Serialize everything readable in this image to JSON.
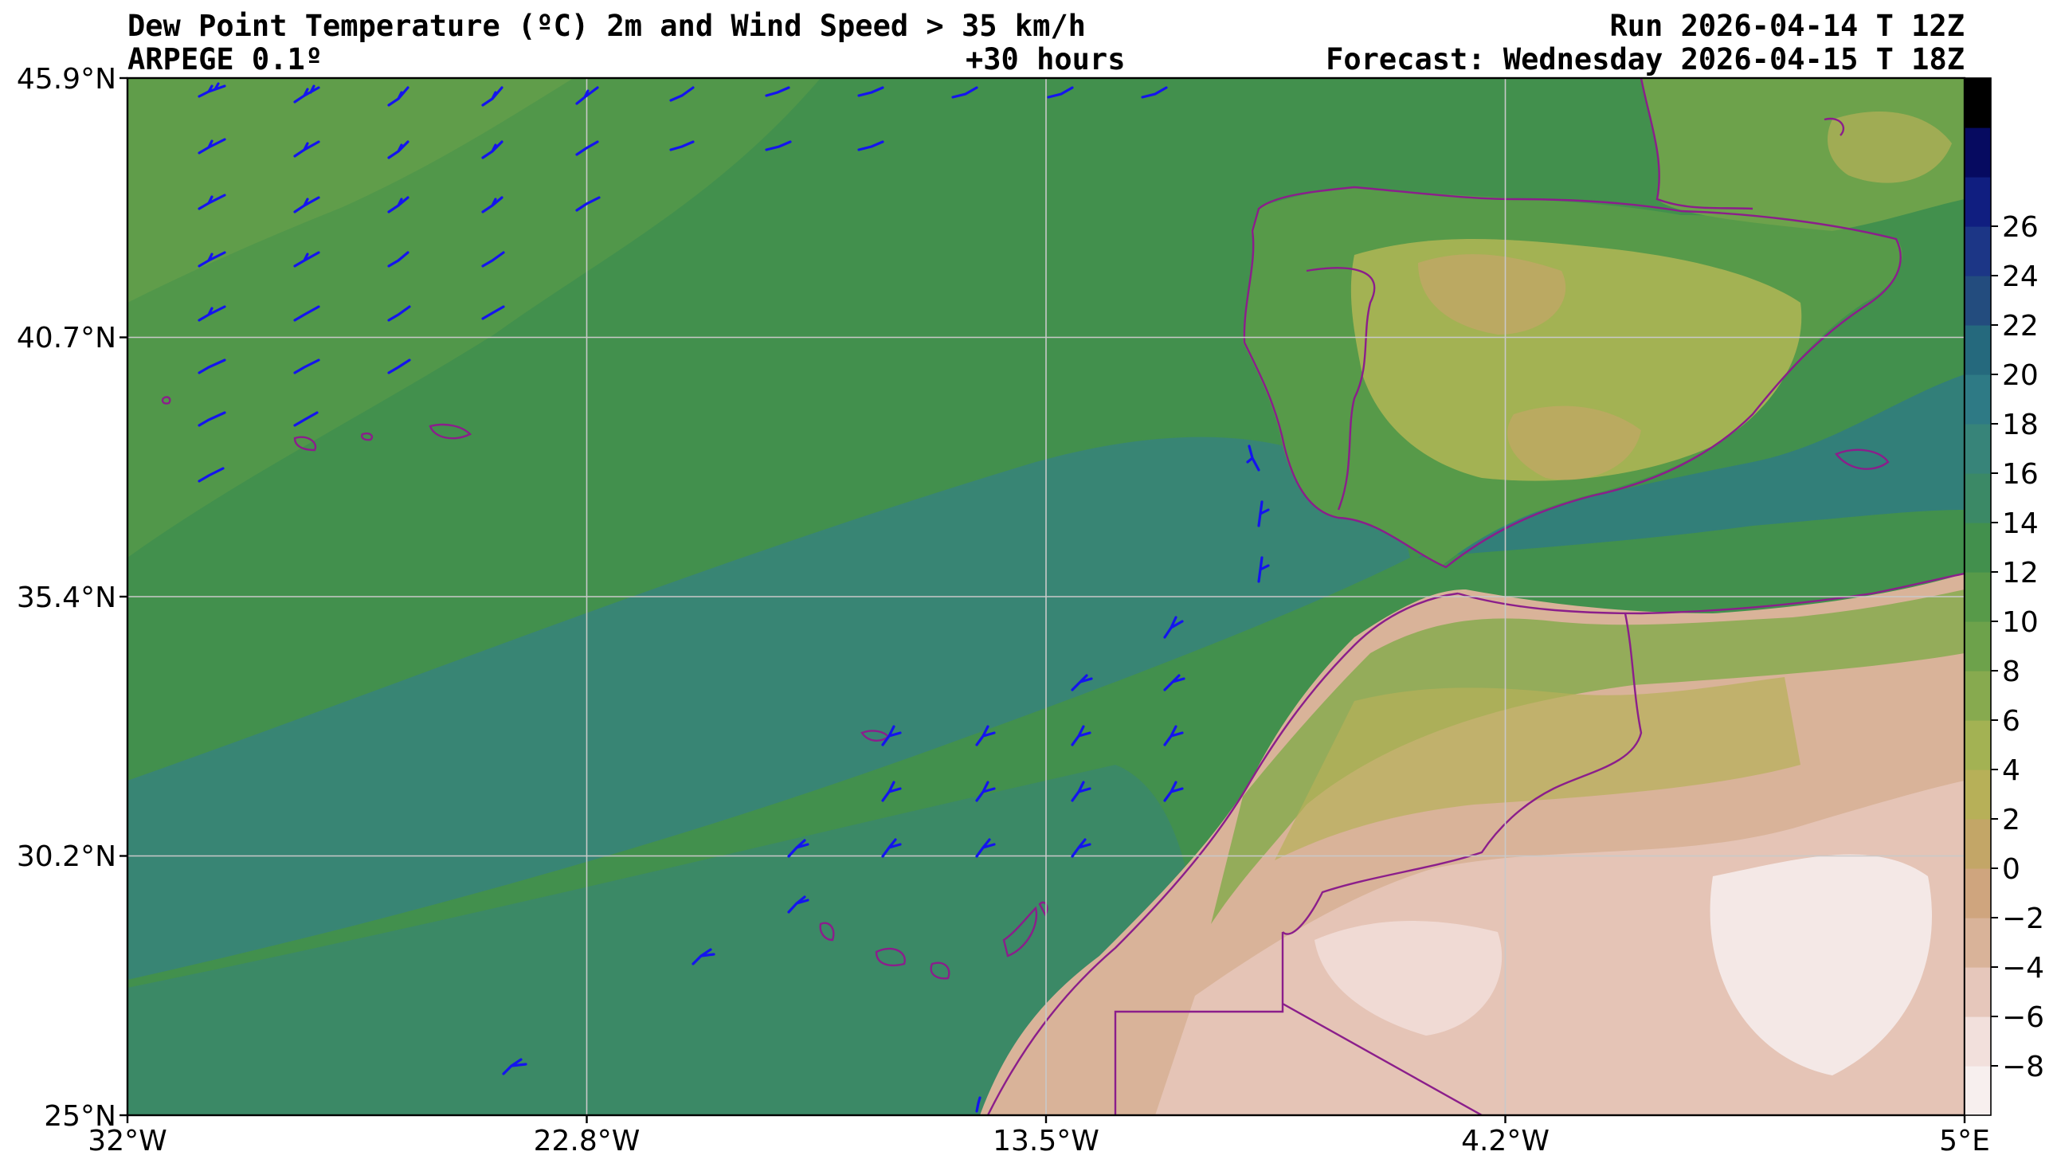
{
  "header": {
    "title": "Dew Point Temperature (ºC) 2m and Wind Speed > 35 km/h",
    "model": "ARPEGE 0.1º",
    "lead_time": "+30 hours",
    "run": "Run 2026-04-14 T 12Z",
    "forecast": "Forecast: Wednesday 2026-04-15 T 18Z"
  },
  "map": {
    "lat_labels": [
      "45.9°N",
      "40.7°N",
      "35.4°N",
      "30.2°N",
      "25°N"
    ],
    "lon_labels": [
      "32°W",
      "22.8°W",
      "13.5°W",
      "4.2°W",
      "5°E"
    ],
    "extent": {
      "lon": [
        -32,
        5
      ],
      "lat": [
        25,
        45.9
      ]
    }
  },
  "colorbar": {
    "tick_labels": [
      "26",
      "24",
      "22",
      "20",
      "18",
      "16",
      "14",
      "12",
      "10",
      "8",
      "6",
      "4",
      "2",
      "0",
      "−2",
      "−4",
      "−6",
      "−8"
    ],
    "colors": [
      "#f7efee",
      "#f2e0dc",
      "#e6c7bb",
      "#d9b399",
      "#cfa57e",
      "#c3a667",
      "#b7b058",
      "#a3b253",
      "#87aa4f",
      "#6da24b",
      "#579a49",
      "#42904d",
      "#3b8966",
      "#378479",
      "#2e7a85",
      "#25697d",
      "#234c7e",
      "#1c3686",
      "#101e80",
      "#060a60",
      "#000000"
    ]
  },
  "wind": {
    "barb_color": "#1414ee"
  }
}
